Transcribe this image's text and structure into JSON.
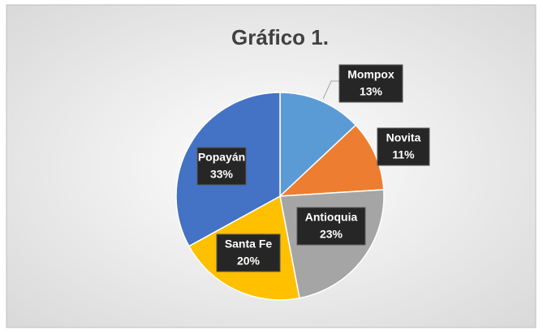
{
  "chart_data": {
    "type": "pie",
    "title": "Gráfico 1.",
    "categories": [
      "Mompox",
      "Novita",
      "Antioquia",
      "Santa Fe",
      "Popayán"
    ],
    "values": [
      13,
      11,
      23,
      20,
      33
    ],
    "value_labels": [
      "13%",
      "11%",
      "23%",
      "20%",
      "33%"
    ],
    "colors": [
      "#5b9bd5",
      "#ed7d31",
      "#a5a5a5",
      "#ffc000",
      "#4472c4"
    ]
  }
}
